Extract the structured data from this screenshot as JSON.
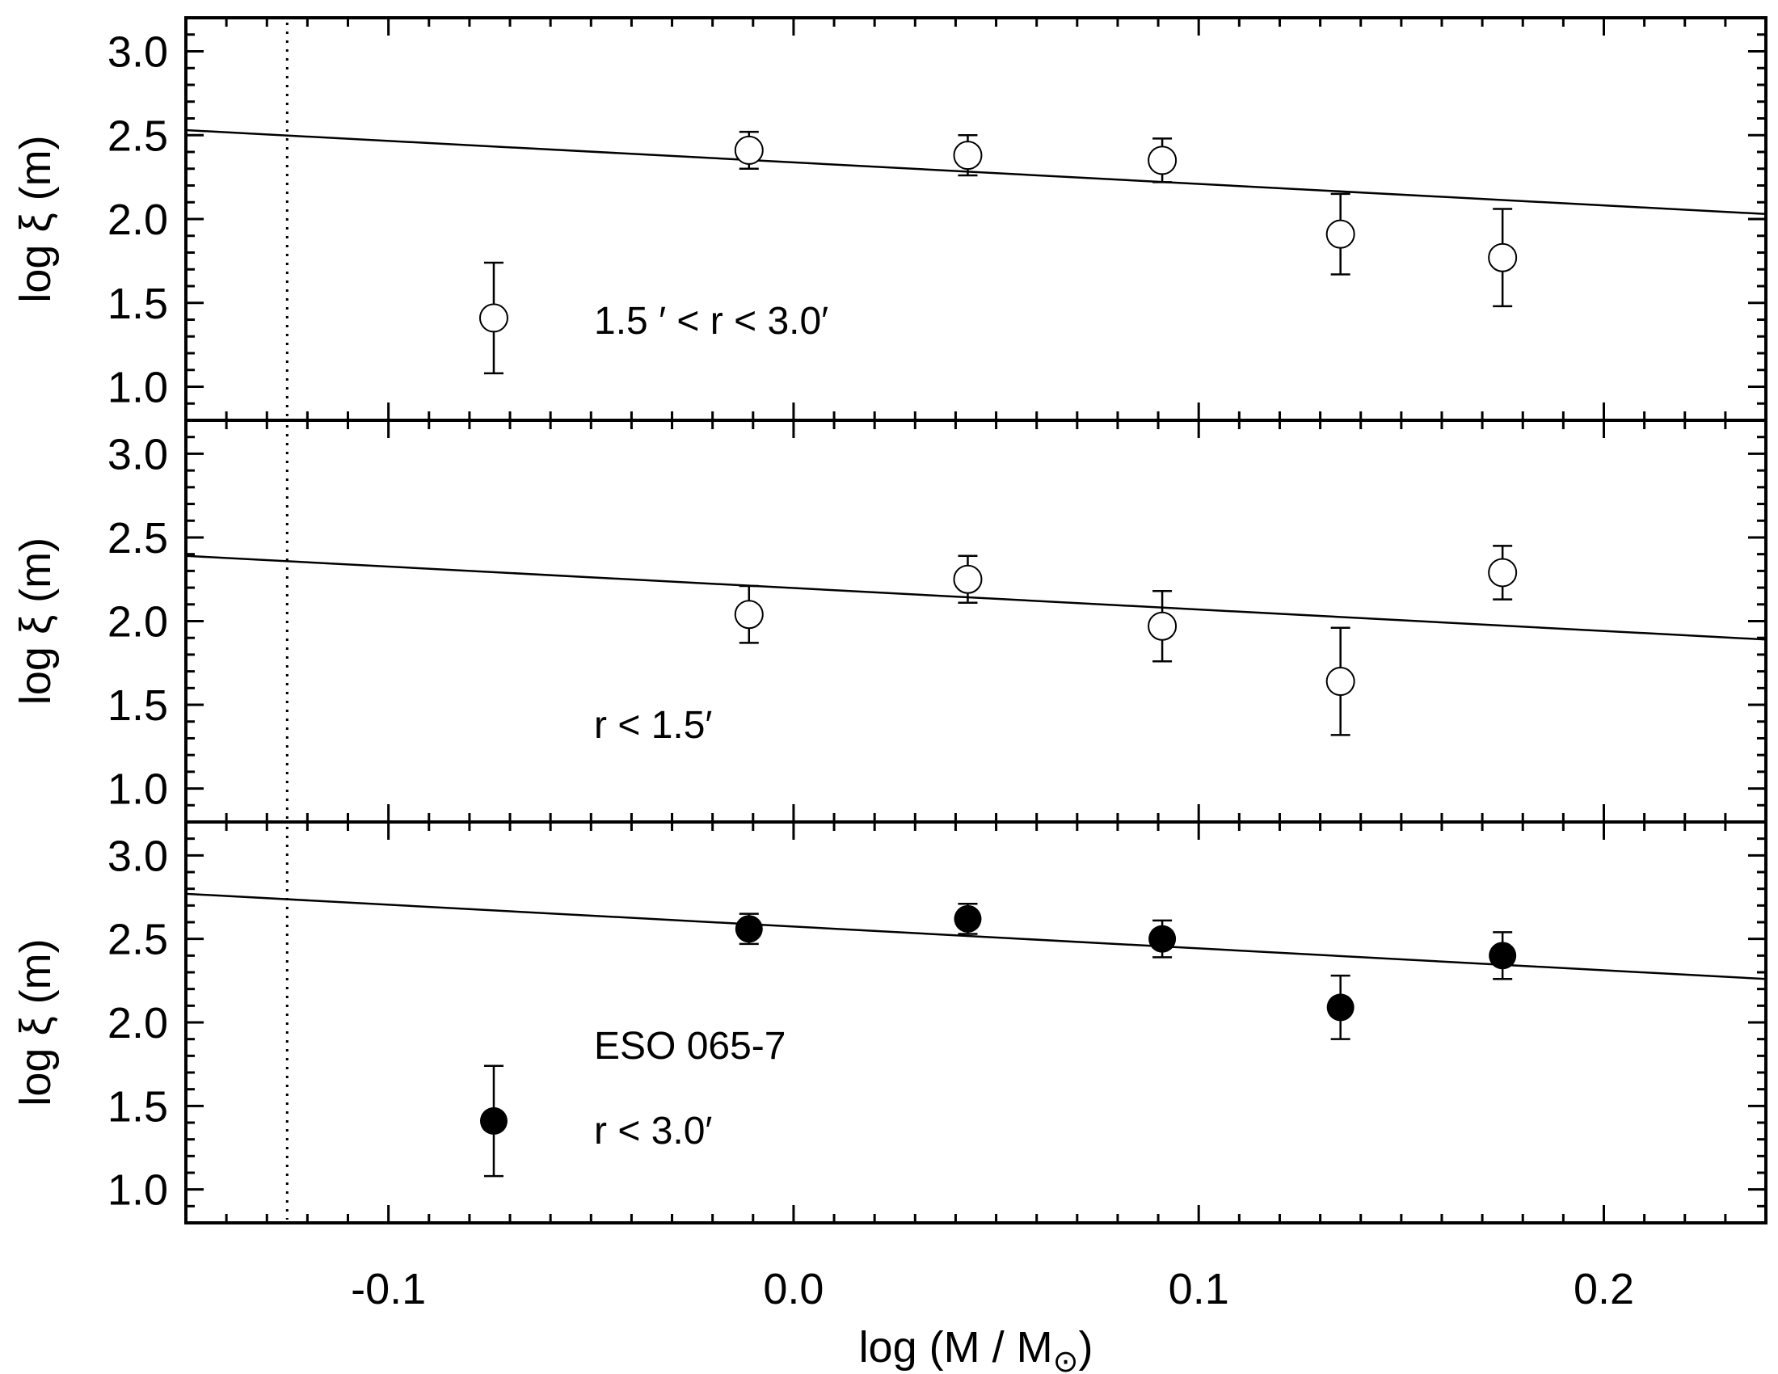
{
  "chart_data": {
    "type": "scatter",
    "xlabel": "log (M / M",
    "xlabel_subscript": "⊙",
    "xlabel_close": ")",
    "xlim": [
      -0.15,
      0.24
    ],
    "xticks": [
      -0.1,
      0.0,
      0.1,
      0.2
    ],
    "xtick_labels": [
      "-0.1",
      "0.0",
      "0.1",
      "0.2"
    ],
    "reference_x": -0.125,
    "grid": false,
    "panels": [
      {
        "ylabel": "log ξ (m)",
        "ylim": [
          0.8,
          3.2
        ],
        "yticks": [
          1.0,
          1.5,
          2.0,
          2.5,
          3.0
        ],
        "ytick_labels": [
          "1.0",
          "1.5",
          "2.0",
          "2.5",
          "3.0"
        ],
        "marker": "open-circle",
        "annotations": [
          "1.5 ′ <  r  <  3.0′"
        ],
        "points": [
          {
            "x": -0.074,
            "y": 1.41,
            "err": 0.33
          },
          {
            "x": -0.011,
            "y": 2.41,
            "err": 0.11
          },
          {
            "x": 0.043,
            "y": 2.38,
            "err": 0.12
          },
          {
            "x": 0.091,
            "y": 2.35,
            "err": 0.13
          },
          {
            "x": 0.135,
            "y": 1.91,
            "err": 0.24
          },
          {
            "x": 0.175,
            "y": 1.77,
            "err": 0.29
          }
        ],
        "fit": {
          "x": [
            -0.15,
            0.24
          ],
          "y": [
            2.53,
            2.03
          ]
        }
      },
      {
        "ylabel": "log ξ (m)",
        "ylim": [
          0.8,
          3.2
        ],
        "yticks": [
          1.0,
          1.5,
          2.0,
          2.5,
          3.0
        ],
        "ytick_labels": [
          "1.0",
          "1.5",
          "2.0",
          "2.5",
          "3.0"
        ],
        "marker": "open-circle",
        "annotations": [
          "r  <  1.5′"
        ],
        "points": [
          {
            "x": -0.011,
            "y": 2.04,
            "err": 0.17
          },
          {
            "x": 0.043,
            "y": 2.25,
            "err": 0.14
          },
          {
            "x": 0.091,
            "y": 1.97,
            "err": 0.21
          },
          {
            "x": 0.135,
            "y": 1.64,
            "err": 0.32
          },
          {
            "x": 0.175,
            "y": 2.29,
            "err": 0.16
          }
        ],
        "fit": {
          "x": [
            -0.15,
            0.24
          ],
          "y": [
            2.39,
            1.89
          ]
        }
      },
      {
        "ylabel": "log ξ (m)",
        "ylim": [
          0.8,
          3.2
        ],
        "yticks": [
          1.0,
          1.5,
          2.0,
          2.5,
          3.0
        ],
        "ytick_labels": [
          "1.0",
          "1.5",
          "2.0",
          "2.5",
          "3.0"
        ],
        "marker": "filled-circle",
        "annotations": [
          "ESO 065-7",
          "r  <  3.0′"
        ],
        "points": [
          {
            "x": -0.074,
            "y": 1.41,
            "err": 0.33
          },
          {
            "x": -0.011,
            "y": 2.56,
            "err": 0.09
          },
          {
            "x": 0.043,
            "y": 2.62,
            "err": 0.09
          },
          {
            "x": 0.091,
            "y": 2.5,
            "err": 0.11
          },
          {
            "x": 0.135,
            "y": 2.09,
            "err": 0.19
          },
          {
            "x": 0.175,
            "y": 2.4,
            "err": 0.14
          }
        ],
        "fit": {
          "x": [
            -0.15,
            0.24
          ],
          "y": [
            2.77,
            2.26
          ]
        }
      }
    ]
  }
}
